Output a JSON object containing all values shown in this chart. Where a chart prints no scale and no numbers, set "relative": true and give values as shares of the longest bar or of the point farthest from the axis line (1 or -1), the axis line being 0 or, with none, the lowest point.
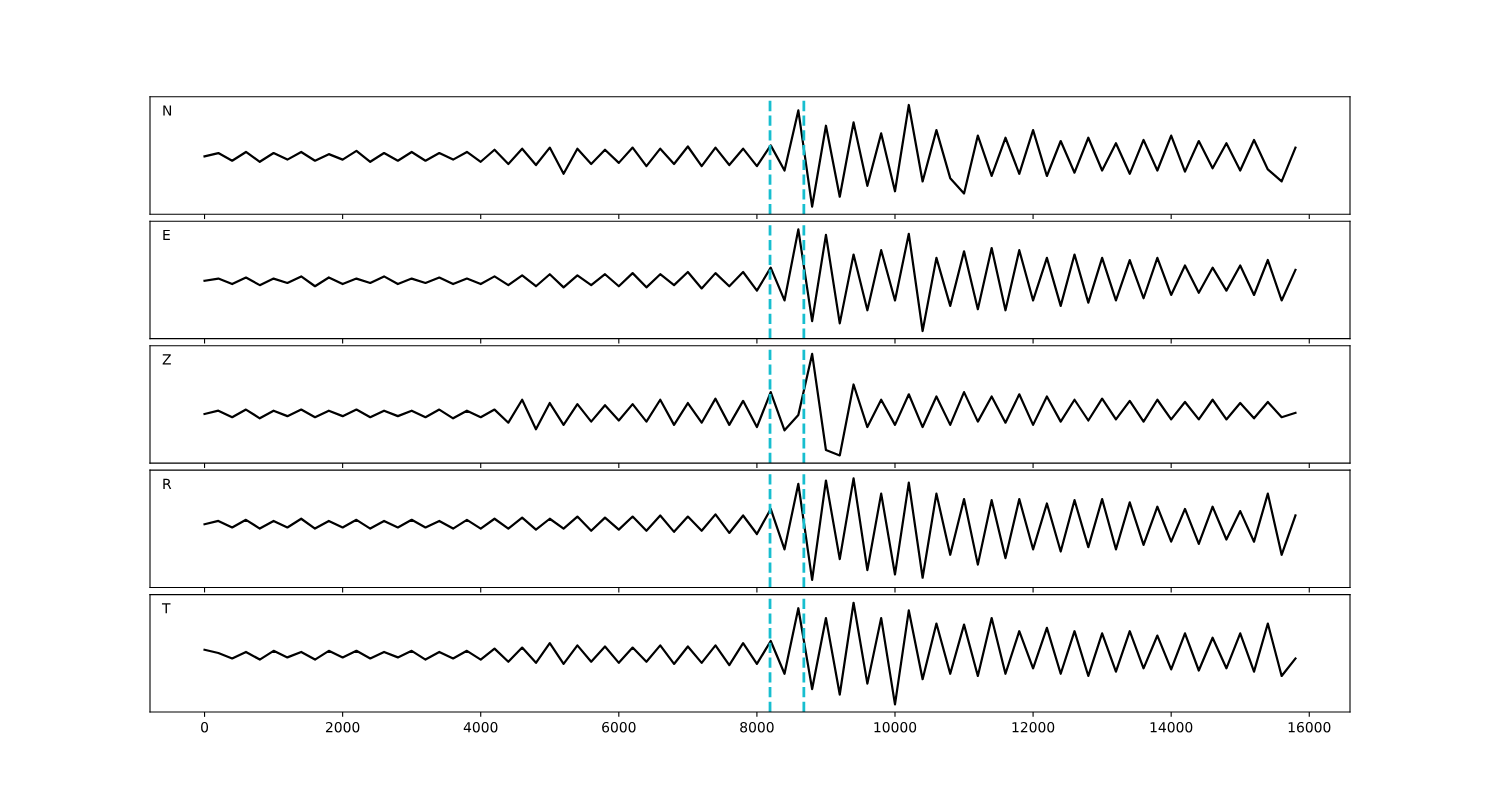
{
  "chart_data": [
    {
      "type": "line",
      "relative": true,
      "tick_labels": false,
      "annotations": [
        "N"
      ],
      "xlim": [
        -790,
        16590
      ],
      "xticks": [
        0,
        2000,
        4000,
        6000,
        8000,
        10000,
        12000,
        14000,
        16000
      ],
      "ref_lines": [
        {
          "axis": "x",
          "value": 8190,
          "color": "#17becf",
          "line_style": "dashed"
        },
        {
          "axis": "x",
          "value": 8680,
          "color": "#17becf",
          "line_style": "dashed"
        }
      ],
      "x": [
        0,
        200,
        400,
        600,
        800,
        1000,
        1200,
        1400,
        1600,
        1800,
        2000,
        2200,
        2400,
        2600,
        2800,
        3000,
        3200,
        3400,
        3600,
        3800,
        4000,
        4200,
        4400,
        4600,
        4800,
        5000,
        5200,
        5400,
        5600,
        5800,
        6000,
        6200,
        6400,
        6600,
        6800,
        7000,
        7200,
        7400,
        7600,
        7800,
        8000,
        8200,
        8400,
        8600,
        8800,
        9000,
        9200,
        9400,
        9600,
        9800,
        10000,
        10200,
        10400,
        10600,
        10800,
        11000,
        11200,
        11400,
        11600,
        11800,
        12000,
        12200,
        12400,
        12600,
        12800,
        13000,
        13200,
        13400,
        13600,
        13800,
        14000,
        14200,
        14400,
        14600,
        14800,
        15000,
        15200,
        15400,
        15600,
        15800
      ],
      "series": [
        {
          "color": "#000000",
          "values": [
            0.53,
            0.56,
            0.49,
            0.57,
            0.48,
            0.56,
            0.5,
            0.57,
            0.49,
            0.55,
            0.5,
            0.58,
            0.48,
            0.56,
            0.49,
            0.57,
            0.49,
            0.56,
            0.5,
            0.57,
            0.48,
            0.59,
            0.46,
            0.6,
            0.45,
            0.61,
            0.37,
            0.6,
            0.46,
            0.59,
            0.47,
            0.61,
            0.44,
            0.6,
            0.46,
            0.62,
            0.44,
            0.61,
            0.45,
            0.6,
            0.44,
            0.63,
            0.4,
            0.95,
            0.07,
            0.81,
            0.16,
            0.84,
            0.26,
            0.74,
            0.21,
            1.0,
            0.3,
            0.77,
            0.33,
            0.19,
            0.72,
            0.35,
            0.7,
            0.37,
            0.77,
            0.35,
            0.67,
            0.38,
            0.7,
            0.4,
            0.65,
            0.37,
            0.68,
            0.4,
            0.72,
            0.39,
            0.67,
            0.42,
            0.65,
            0.4,
            0.68,
            0.41,
            0.3,
            0.61
          ]
        }
      ]
    },
    {
      "type": "line",
      "relative": true,
      "tick_labels": false,
      "annotations": [
        "E"
      ],
      "xlim": [
        -790,
        16590
      ],
      "xticks": [
        0,
        2000,
        4000,
        6000,
        8000,
        10000,
        12000,
        14000,
        16000
      ],
      "ref_lines": [
        {
          "axis": "x",
          "value": 8190,
          "color": "#17becf",
          "line_style": "dashed"
        },
        {
          "axis": "x",
          "value": 8680,
          "color": "#17becf",
          "line_style": "dashed"
        }
      ],
      "x": [
        0,
        200,
        400,
        600,
        800,
        1000,
        1200,
        1400,
        1600,
        1800,
        2000,
        2200,
        2400,
        2600,
        2800,
        3000,
        3200,
        3400,
        3600,
        3800,
        4000,
        4200,
        4400,
        4600,
        4800,
        5000,
        5200,
        5400,
        5600,
        5800,
        6000,
        6200,
        6400,
        6600,
        6800,
        7000,
        7200,
        7400,
        7600,
        7800,
        8000,
        8200,
        8400,
        8600,
        8800,
        9000,
        9200,
        9400,
        9600,
        9800,
        10000,
        10200,
        10400,
        10600,
        10800,
        11000,
        11200,
        11400,
        11600,
        11800,
        12000,
        12200,
        12400,
        12600,
        12800,
        13000,
        13200,
        13400,
        13600,
        13800,
        14000,
        14200,
        14400,
        14600,
        14800,
        15000,
        15200,
        15400,
        15600,
        15800
      ],
      "series": [
        {
          "color": "#000000",
          "values": [
            0.53,
            0.55,
            0.5,
            0.56,
            0.49,
            0.55,
            0.51,
            0.57,
            0.48,
            0.56,
            0.5,
            0.55,
            0.51,
            0.57,
            0.5,
            0.55,
            0.51,
            0.56,
            0.5,
            0.55,
            0.5,
            0.57,
            0.49,
            0.58,
            0.48,
            0.59,
            0.47,
            0.58,
            0.49,
            0.59,
            0.48,
            0.6,
            0.47,
            0.59,
            0.49,
            0.61,
            0.46,
            0.6,
            0.48,
            0.61,
            0.44,
            0.65,
            0.35,
            1.0,
            0.16,
            0.95,
            0.14,
            0.77,
            0.26,
            0.81,
            0.35,
            0.96,
            0.07,
            0.74,
            0.3,
            0.8,
            0.27,
            0.83,
            0.26,
            0.81,
            0.35,
            0.74,
            0.3,
            0.77,
            0.33,
            0.74,
            0.35,
            0.72,
            0.37,
            0.74,
            0.4,
            0.67,
            0.42,
            0.65,
            0.44,
            0.67,
            0.4,
            0.72,
            0.35,
            0.63
          ]
        }
      ]
    },
    {
      "type": "line",
      "relative": true,
      "tick_labels": false,
      "annotations": [
        "Z"
      ],
      "xlim": [
        -790,
        16590
      ],
      "xticks": [
        0,
        2000,
        4000,
        6000,
        8000,
        10000,
        12000,
        14000,
        16000
      ],
      "ref_lines": [
        {
          "axis": "x",
          "value": 8190,
          "color": "#17becf",
          "line_style": "dashed"
        },
        {
          "axis": "x",
          "value": 8680,
          "color": "#17becf",
          "line_style": "dashed"
        }
      ],
      "x": [
        0,
        200,
        400,
        600,
        800,
        1000,
        1200,
        1400,
        1600,
        1800,
        2000,
        2200,
        2400,
        2600,
        2800,
        3000,
        3200,
        3400,
        3600,
        3800,
        4000,
        4200,
        4400,
        4600,
        4800,
        5000,
        5200,
        5400,
        5600,
        5800,
        6000,
        6200,
        6400,
        6600,
        6800,
        7000,
        7200,
        7400,
        7600,
        7800,
        8000,
        8200,
        8400,
        8600,
        8800,
        9000,
        9200,
        9400,
        9600,
        9800,
        10000,
        10200,
        10400,
        10600,
        10800,
        11000,
        11200,
        11400,
        11600,
        11800,
        12000,
        12200,
        12400,
        12600,
        12800,
        13000,
        13200,
        13400,
        13600,
        13800,
        14000,
        14200,
        14400,
        14600,
        14800,
        15000,
        15200,
        15400,
        15600,
        15800
      ],
      "series": [
        {
          "color": "#000000",
          "values": [
            0.45,
            0.48,
            0.42,
            0.49,
            0.41,
            0.48,
            0.43,
            0.49,
            0.42,
            0.48,
            0.43,
            0.49,
            0.42,
            0.48,
            0.43,
            0.48,
            0.42,
            0.49,
            0.41,
            0.48,
            0.42,
            0.49,
            0.37,
            0.58,
            0.31,
            0.55,
            0.35,
            0.54,
            0.38,
            0.53,
            0.39,
            0.54,
            0.38,
            0.58,
            0.35,
            0.55,
            0.37,
            0.59,
            0.35,
            0.57,
            0.33,
            0.65,
            0.3,
            0.44,
            1.0,
            0.12,
            0.07,
            0.72,
            0.33,
            0.58,
            0.35,
            0.63,
            0.33,
            0.61,
            0.35,
            0.65,
            0.38,
            0.61,
            0.37,
            0.63,
            0.35,
            0.61,
            0.38,
            0.58,
            0.39,
            0.59,
            0.4,
            0.57,
            0.38,
            0.58,
            0.4,
            0.56,
            0.4,
            0.58,
            0.4,
            0.55,
            0.41,
            0.56,
            0.42,
            0.46
          ]
        }
      ]
    },
    {
      "type": "line",
      "relative": true,
      "tick_labels": false,
      "annotations": [
        "R"
      ],
      "xlim": [
        -790,
        16590
      ],
      "xticks": [
        0,
        2000,
        4000,
        6000,
        8000,
        10000,
        12000,
        14000,
        16000
      ],
      "ref_lines": [
        {
          "axis": "x",
          "value": 8190,
          "color": "#17becf",
          "line_style": "dashed"
        },
        {
          "axis": "x",
          "value": 8680,
          "color": "#17becf",
          "line_style": "dashed"
        }
      ],
      "x": [
        0,
        200,
        400,
        600,
        800,
        1000,
        1200,
        1400,
        1600,
        1800,
        2000,
        2200,
        2400,
        2600,
        2800,
        3000,
        3200,
        3400,
        3600,
        3800,
        4000,
        4200,
        4400,
        4600,
        4800,
        5000,
        5200,
        5400,
        5600,
        5800,
        6000,
        6200,
        6400,
        6600,
        6800,
        7000,
        7200,
        7400,
        7600,
        7800,
        8000,
        8200,
        8400,
        8600,
        8800,
        9000,
        9200,
        9400,
        9600,
        9800,
        10000,
        10200,
        10400,
        10600,
        10800,
        11000,
        11200,
        11400,
        11600,
        11800,
        12000,
        12200,
        12400,
        12600,
        12800,
        13000,
        13200,
        13400,
        13600,
        13800,
        14000,
        14200,
        14400,
        14600,
        14800,
        15000,
        15200,
        15400,
        15600,
        15800
      ],
      "series": [
        {
          "color": "#000000",
          "values": [
            0.58,
            0.61,
            0.55,
            0.62,
            0.54,
            0.61,
            0.55,
            0.63,
            0.54,
            0.61,
            0.55,
            0.62,
            0.54,
            0.61,
            0.55,
            0.62,
            0.55,
            0.61,
            0.54,
            0.62,
            0.54,
            0.63,
            0.54,
            0.64,
            0.53,
            0.63,
            0.54,
            0.65,
            0.52,
            0.64,
            0.53,
            0.65,
            0.52,
            0.66,
            0.51,
            0.65,
            0.52,
            0.67,
            0.5,
            0.66,
            0.49,
            0.72,
            0.35,
            0.95,
            0.07,
            0.98,
            0.26,
            1.0,
            0.16,
            0.86,
            0.12,
            0.96,
            0.09,
            0.86,
            0.3,
            0.81,
            0.21,
            0.8,
            0.27,
            0.81,
            0.35,
            0.77,
            0.33,
            0.8,
            0.37,
            0.81,
            0.35,
            0.78,
            0.39,
            0.74,
            0.42,
            0.72,
            0.4,
            0.74,
            0.44,
            0.7,
            0.42,
            0.86,
            0.3,
            0.66
          ]
        }
      ]
    },
    {
      "type": "line",
      "relative": true,
      "annotations": [
        "T"
      ],
      "xlim": [
        -790,
        16590
      ],
      "xticks": [
        0,
        2000,
        4000,
        6000,
        8000,
        10000,
        12000,
        14000,
        16000
      ],
      "ref_lines": [
        {
          "axis": "x",
          "value": 8190,
          "color": "#17becf",
          "line_style": "dashed"
        },
        {
          "axis": "x",
          "value": 8680,
          "color": "#17becf",
          "line_style": "dashed"
        }
      ],
      "x": [
        0,
        200,
        400,
        600,
        800,
        1000,
        1200,
        1400,
        1600,
        1800,
        2000,
        2200,
        2400,
        2600,
        2800,
        3000,
        3200,
        3400,
        3600,
        3800,
        4000,
        4200,
        4400,
        4600,
        4800,
        5000,
        5200,
        5400,
        5600,
        5800,
        6000,
        6200,
        6400,
        6600,
        6800,
        7000,
        7200,
        7400,
        7600,
        7800,
        8000,
        8200,
        8400,
        8600,
        8800,
        9000,
        9200,
        9400,
        9600,
        9800,
        10000,
        10200,
        10400,
        10600,
        10800,
        11000,
        11200,
        11400,
        11600,
        11800,
        12000,
        12200,
        12400,
        12600,
        12800,
        13000,
        13200,
        13400,
        13600,
        13800,
        14000,
        14200,
        14400,
        14600,
        14800,
        15000,
        15200,
        15400,
        15600,
        15800
      ],
      "series": [
        {
          "color": "#000000",
          "values": [
            0.57,
            0.54,
            0.49,
            0.55,
            0.48,
            0.56,
            0.5,
            0.55,
            0.48,
            0.56,
            0.5,
            0.56,
            0.49,
            0.55,
            0.5,
            0.56,
            0.48,
            0.55,
            0.49,
            0.56,
            0.48,
            0.58,
            0.46,
            0.59,
            0.45,
            0.63,
            0.44,
            0.61,
            0.46,
            0.6,
            0.45,
            0.59,
            0.46,
            0.61,
            0.44,
            0.6,
            0.45,
            0.61,
            0.43,
            0.63,
            0.44,
            0.65,
            0.35,
            0.95,
            0.21,
            0.86,
            0.16,
            1.0,
            0.26,
            0.86,
            0.07,
            0.93,
            0.3,
            0.81,
            0.35,
            0.8,
            0.33,
            0.86,
            0.35,
            0.74,
            0.4,
            0.77,
            0.35,
            0.74,
            0.33,
            0.72,
            0.37,
            0.74,
            0.4,
            0.7,
            0.39,
            0.72,
            0.38,
            0.68,
            0.4,
            0.72,
            0.37,
            0.81,
            0.33,
            0.49
          ]
        }
      ]
    }
  ]
}
